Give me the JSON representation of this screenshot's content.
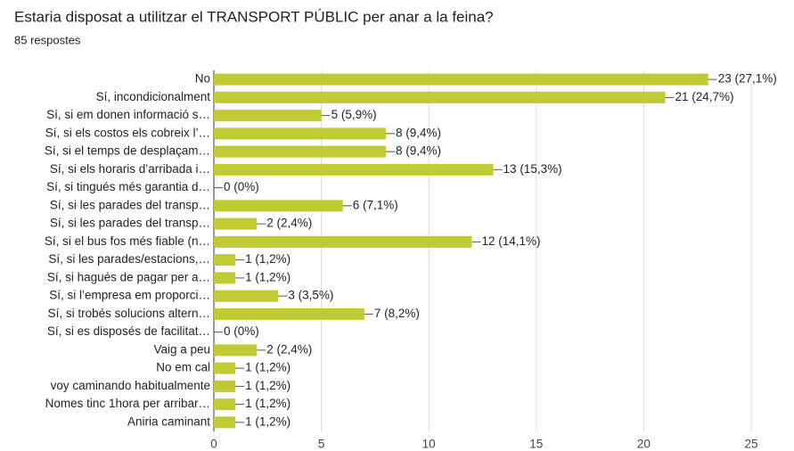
{
  "chart_data": {
    "type": "hbar",
    "title": "Estaria disposat a utilitzar el TRANSPORT PÚBLIC per anar a la feina?",
    "subtitle": "85 respostes",
    "categories": [
      "No",
      "Sí, incondicionalment",
      "Sí, si em donen informació s…",
      "Sí, si els costos els cobreix l’…",
      "Sí, si el temps de desplaçam…",
      "Sí, si els horaris d’arribada i…",
      "Sí, si tingués més garantia d…",
      "Sí, si les parades del transp…",
      "Sí, si les parades del transp…",
      "Sí, si el bus fos més fiable (n…",
      "Sí, si les parades/estacions,…",
      "Sí, si hagués de pagar per a…",
      "Sí, si l’empresa em proporci…",
      "Sí, si trobés solucions altern…",
      "Sí, si es disposés de facilitat…",
      "Vaig a peu",
      "No em cal",
      "voy caminando habitualmente",
      "Nomes tinc 1hora per arribar…",
      "Aniria caminant"
    ],
    "values": [
      23,
      21,
      5,
      8,
      8,
      13,
      0,
      6,
      2,
      12,
      1,
      1,
      3,
      7,
      0,
      2,
      1,
      1,
      1,
      1
    ],
    "value_labels": [
      "23 (27,1%)",
      "21 (24,7%)",
      "5 (5,9%)",
      "8 (9,4%)",
      "8 (9,4%)",
      "13 (15,3%)",
      "0 (0%)",
      "6 (7,1%)",
      "2 (2,4%)",
      "12 (14,1%)",
      "1 (1,2%)",
      "1 (1,2%)",
      "3 (3,5%)",
      "7 (8,2%)",
      "0 (0%)",
      "2 (2,4%)",
      "1 (1,2%)",
      "1 (1,2%)",
      "1 (1,2%)",
      "1 (1,2%)"
    ],
    "color": "#c0ca33",
    "xlim": [
      0,
      25
    ],
    "xticks": [
      0,
      5,
      10,
      15,
      20,
      25
    ],
    "grid": true
  }
}
